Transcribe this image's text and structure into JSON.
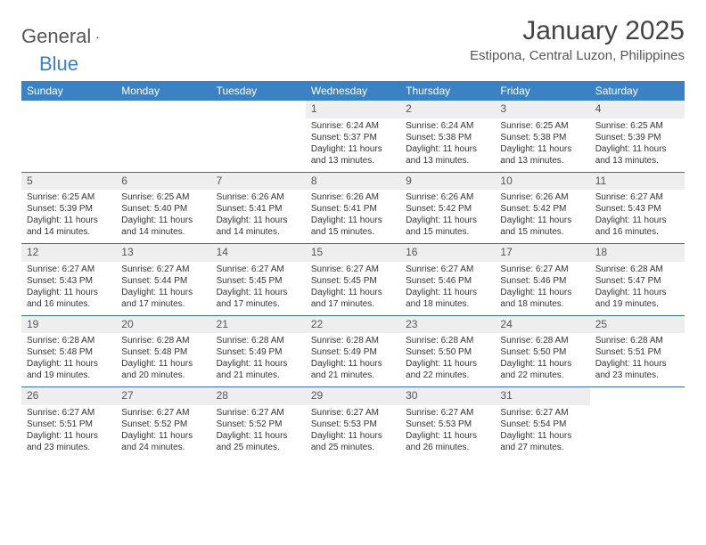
{
  "logo": {
    "word1": "General",
    "word2": "Blue"
  },
  "title": "January 2025",
  "location": "Estipona, Central Luzon, Philippines",
  "colors": {
    "header_bg": "#3b82c4",
    "header_text": "#ffffff",
    "daynum_bg": "#eeeeee",
    "row_border": "#3b6ea0",
    "text": "#333333",
    "logo_gray": "#555555",
    "logo_blue": "#3b82c4"
  },
  "typography": {
    "title_fontsize": 30,
    "location_fontsize": 15,
    "weekday_fontsize": 12,
    "daynum_fontsize": 12,
    "body_fontsize": 10
  },
  "calendar": {
    "type": "table",
    "weekdays": [
      "Sunday",
      "Monday",
      "Tuesday",
      "Wednesday",
      "Thursday",
      "Friday",
      "Saturday"
    ],
    "weeks": [
      [
        {
          "empty": true
        },
        {
          "empty": true
        },
        {
          "empty": true
        },
        {
          "num": "1",
          "sunrise": "Sunrise: 6:24 AM",
          "sunset": "Sunset: 5:37 PM",
          "day1": "Daylight: 11 hours",
          "day2": "and 13 minutes."
        },
        {
          "num": "2",
          "sunrise": "Sunrise: 6:24 AM",
          "sunset": "Sunset: 5:38 PM",
          "day1": "Daylight: 11 hours",
          "day2": "and 13 minutes."
        },
        {
          "num": "3",
          "sunrise": "Sunrise: 6:25 AM",
          "sunset": "Sunset: 5:38 PM",
          "day1": "Daylight: 11 hours",
          "day2": "and 13 minutes."
        },
        {
          "num": "4",
          "sunrise": "Sunrise: 6:25 AM",
          "sunset": "Sunset: 5:39 PM",
          "day1": "Daylight: 11 hours",
          "day2": "and 13 minutes."
        }
      ],
      [
        {
          "num": "5",
          "sunrise": "Sunrise: 6:25 AM",
          "sunset": "Sunset: 5:39 PM",
          "day1": "Daylight: 11 hours",
          "day2": "and 14 minutes."
        },
        {
          "num": "6",
          "sunrise": "Sunrise: 6:25 AM",
          "sunset": "Sunset: 5:40 PM",
          "day1": "Daylight: 11 hours",
          "day2": "and 14 minutes."
        },
        {
          "num": "7",
          "sunrise": "Sunrise: 6:26 AM",
          "sunset": "Sunset: 5:41 PM",
          "day1": "Daylight: 11 hours",
          "day2": "and 14 minutes."
        },
        {
          "num": "8",
          "sunrise": "Sunrise: 6:26 AM",
          "sunset": "Sunset: 5:41 PM",
          "day1": "Daylight: 11 hours",
          "day2": "and 15 minutes."
        },
        {
          "num": "9",
          "sunrise": "Sunrise: 6:26 AM",
          "sunset": "Sunset: 5:42 PM",
          "day1": "Daylight: 11 hours",
          "day2": "and 15 minutes."
        },
        {
          "num": "10",
          "sunrise": "Sunrise: 6:26 AM",
          "sunset": "Sunset: 5:42 PM",
          "day1": "Daylight: 11 hours",
          "day2": "and 15 minutes."
        },
        {
          "num": "11",
          "sunrise": "Sunrise: 6:27 AM",
          "sunset": "Sunset: 5:43 PM",
          "day1": "Daylight: 11 hours",
          "day2": "and 16 minutes."
        }
      ],
      [
        {
          "num": "12",
          "sunrise": "Sunrise: 6:27 AM",
          "sunset": "Sunset: 5:43 PM",
          "day1": "Daylight: 11 hours",
          "day2": "and 16 minutes."
        },
        {
          "num": "13",
          "sunrise": "Sunrise: 6:27 AM",
          "sunset": "Sunset: 5:44 PM",
          "day1": "Daylight: 11 hours",
          "day2": "and 17 minutes."
        },
        {
          "num": "14",
          "sunrise": "Sunrise: 6:27 AM",
          "sunset": "Sunset: 5:45 PM",
          "day1": "Daylight: 11 hours",
          "day2": "and 17 minutes."
        },
        {
          "num": "15",
          "sunrise": "Sunrise: 6:27 AM",
          "sunset": "Sunset: 5:45 PM",
          "day1": "Daylight: 11 hours",
          "day2": "and 17 minutes."
        },
        {
          "num": "16",
          "sunrise": "Sunrise: 6:27 AM",
          "sunset": "Sunset: 5:46 PM",
          "day1": "Daylight: 11 hours",
          "day2": "and 18 minutes."
        },
        {
          "num": "17",
          "sunrise": "Sunrise: 6:27 AM",
          "sunset": "Sunset: 5:46 PM",
          "day1": "Daylight: 11 hours",
          "day2": "and 18 minutes."
        },
        {
          "num": "18",
          "sunrise": "Sunrise: 6:28 AM",
          "sunset": "Sunset: 5:47 PM",
          "day1": "Daylight: 11 hours",
          "day2": "and 19 minutes."
        }
      ],
      [
        {
          "num": "19",
          "sunrise": "Sunrise: 6:28 AM",
          "sunset": "Sunset: 5:48 PM",
          "day1": "Daylight: 11 hours",
          "day2": "and 19 minutes."
        },
        {
          "num": "20",
          "sunrise": "Sunrise: 6:28 AM",
          "sunset": "Sunset: 5:48 PM",
          "day1": "Daylight: 11 hours",
          "day2": "and 20 minutes."
        },
        {
          "num": "21",
          "sunrise": "Sunrise: 6:28 AM",
          "sunset": "Sunset: 5:49 PM",
          "day1": "Daylight: 11 hours",
          "day2": "and 21 minutes."
        },
        {
          "num": "22",
          "sunrise": "Sunrise: 6:28 AM",
          "sunset": "Sunset: 5:49 PM",
          "day1": "Daylight: 11 hours",
          "day2": "and 21 minutes."
        },
        {
          "num": "23",
          "sunrise": "Sunrise: 6:28 AM",
          "sunset": "Sunset: 5:50 PM",
          "day1": "Daylight: 11 hours",
          "day2": "and 22 minutes."
        },
        {
          "num": "24",
          "sunrise": "Sunrise: 6:28 AM",
          "sunset": "Sunset: 5:50 PM",
          "day1": "Daylight: 11 hours",
          "day2": "and 22 minutes."
        },
        {
          "num": "25",
          "sunrise": "Sunrise: 6:28 AM",
          "sunset": "Sunset: 5:51 PM",
          "day1": "Daylight: 11 hours",
          "day2": "and 23 minutes."
        }
      ],
      [
        {
          "num": "26",
          "sunrise": "Sunrise: 6:27 AM",
          "sunset": "Sunset: 5:51 PM",
          "day1": "Daylight: 11 hours",
          "day2": "and 23 minutes."
        },
        {
          "num": "27",
          "sunrise": "Sunrise: 6:27 AM",
          "sunset": "Sunset: 5:52 PM",
          "day1": "Daylight: 11 hours",
          "day2": "and 24 minutes."
        },
        {
          "num": "28",
          "sunrise": "Sunrise: 6:27 AM",
          "sunset": "Sunset: 5:52 PM",
          "day1": "Daylight: 11 hours",
          "day2": "and 25 minutes."
        },
        {
          "num": "29",
          "sunrise": "Sunrise: 6:27 AM",
          "sunset": "Sunset: 5:53 PM",
          "day1": "Daylight: 11 hours",
          "day2": "and 25 minutes."
        },
        {
          "num": "30",
          "sunrise": "Sunrise: 6:27 AM",
          "sunset": "Sunset: 5:53 PM",
          "day1": "Daylight: 11 hours",
          "day2": "and 26 minutes."
        },
        {
          "num": "31",
          "sunrise": "Sunrise: 6:27 AM",
          "sunset": "Sunset: 5:54 PM",
          "day1": "Daylight: 11 hours",
          "day2": "and 27 minutes."
        },
        {
          "empty": true
        }
      ]
    ]
  }
}
